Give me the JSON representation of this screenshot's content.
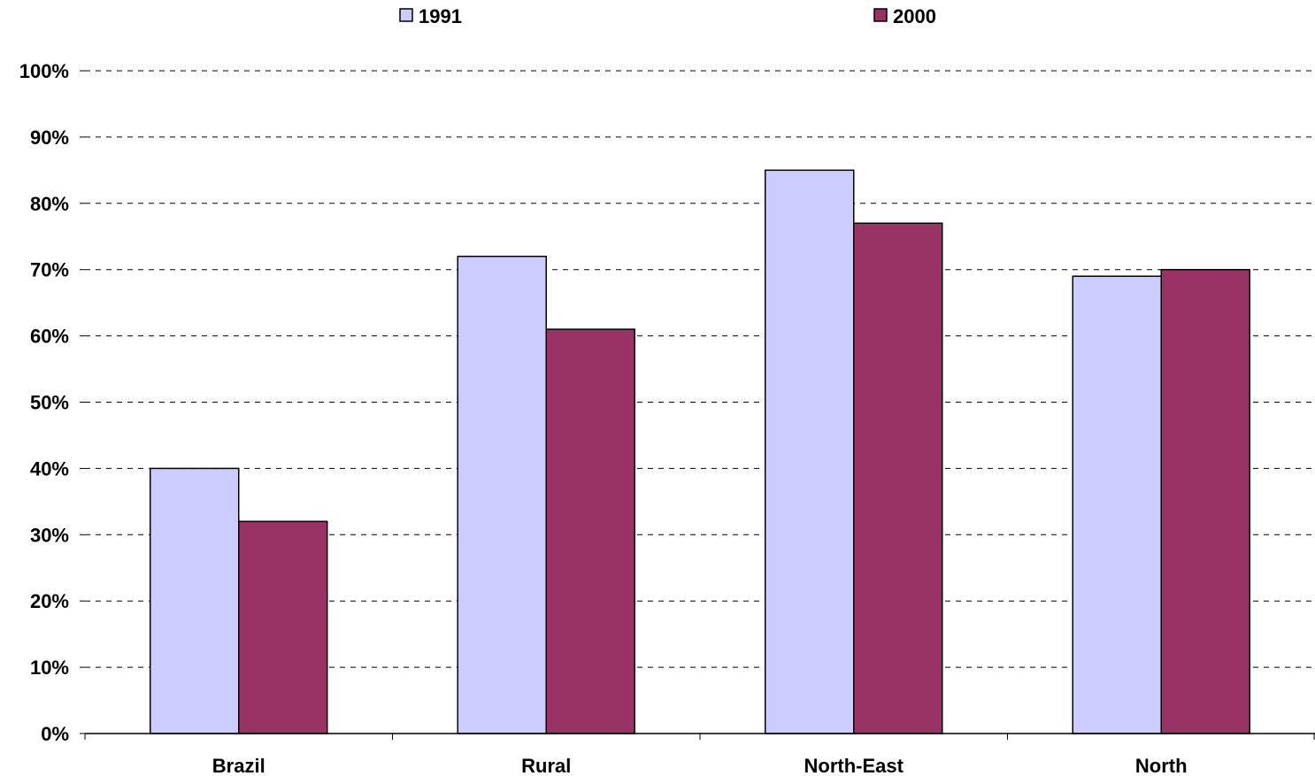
{
  "chart_data": {
    "type": "bar",
    "categories": [
      "Brazil",
      "Rural",
      "North-East",
      "North"
    ],
    "series": [
      {
        "name": "1991",
        "values": [
          40,
          72,
          85,
          69
        ],
        "color": "#ccccff"
      },
      {
        "name": "2000",
        "values": [
          32,
          61,
          77,
          70
        ],
        "color": "#993366"
      }
    ],
    "y_ticks": [
      "0%",
      "10%",
      "20%",
      "30%",
      "40%",
      "50%",
      "60%",
      "70%",
      "80%",
      "90%",
      "100%"
    ],
    "ylim": [
      0,
      100
    ],
    "y_unit": "%",
    "grid": true,
    "grid_style": "dashed",
    "legend_position": "top",
    "title": "",
    "xlabel": "",
    "ylabel": ""
  }
}
